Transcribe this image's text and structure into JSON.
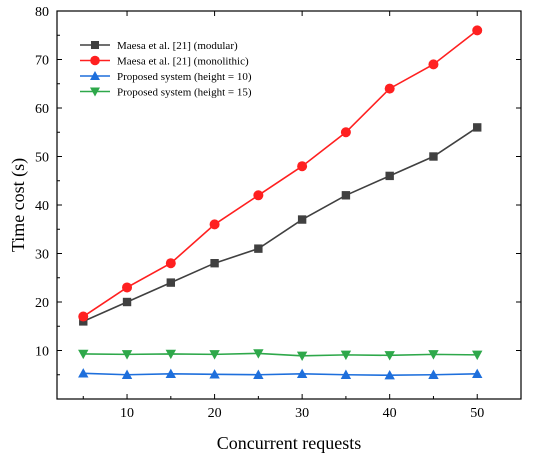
{
  "chart_data": {
    "type": "line",
    "title": "",
    "xlabel": "Concurrent requests",
    "ylabel": "Time cost (s)",
    "xlim": [
      2,
      55
    ],
    "ylim": [
      0,
      80
    ],
    "xticks": [
      10,
      20,
      30,
      40,
      50
    ],
    "yticks": [
      10,
      20,
      30,
      40,
      50,
      60,
      70,
      80
    ],
    "grid": false,
    "legend_position": "top-left",
    "x": [
      5,
      10,
      15,
      20,
      25,
      30,
      35,
      40,
      45,
      50
    ],
    "series": [
      {
        "name": "Maesa et al. [21] (modular)",
        "color": "#404040",
        "marker": "square",
        "values": [
          16,
          20,
          24,
          28,
          31,
          37,
          42,
          46,
          50,
          56
        ]
      },
      {
        "name": "Maesa et al. [21] (monolithic)",
        "color": "#ff2020",
        "marker": "circle",
        "values": [
          17,
          23,
          28,
          36,
          42,
          48,
          55,
          64,
          69,
          76
        ]
      },
      {
        "name": "Proposed system (height = 10)",
        "color": "#1e6fdc",
        "marker": "triangle-up",
        "values": [
          5.3,
          5.0,
          5.2,
          5.1,
          5.0,
          5.2,
          5.0,
          4.9,
          5.0,
          5.2
        ]
      },
      {
        "name": "Proposed system (height = 15)",
        "color": "#2ea84a",
        "marker": "triangle-down",
        "values": [
          9.3,
          9.2,
          9.3,
          9.2,
          9.4,
          8.9,
          9.1,
          9.0,
          9.2,
          9.1
        ]
      }
    ]
  }
}
